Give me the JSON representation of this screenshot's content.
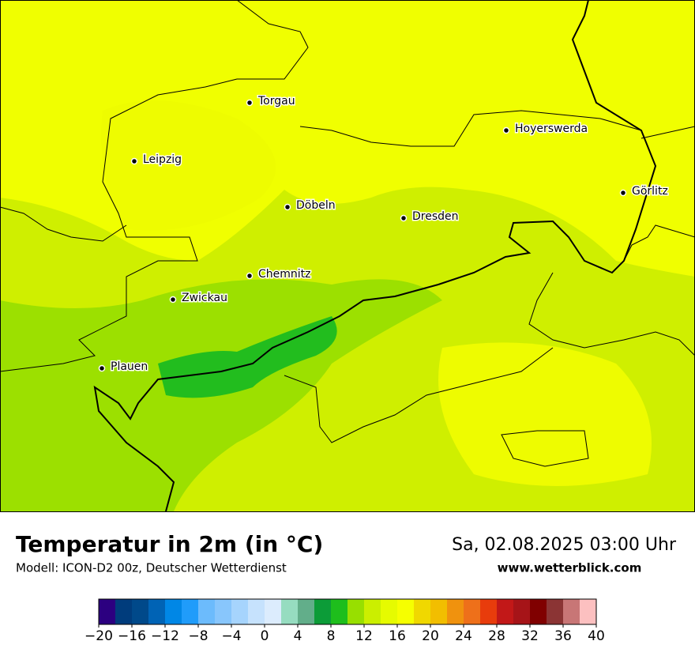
{
  "header": {
    "title": "Temperatur in 2m (in °C)",
    "model": "Modell: ICON-D2 00z, Deutscher Wetterdienst",
    "datetime": "Sa, 02.08.2025 03:00 Uhr",
    "website": "www.wetterblick.com"
  },
  "cities": [
    "Torgau",
    "Leipzig",
    "Hoyerswerda",
    "Görlitz",
    "Döbeln",
    "Dresden",
    "Chemnitz",
    "Zwickau",
    "Plauen"
  ],
  "colorbar": {
    "lim": [
      -20,
      40
    ],
    "colors": [
      "#2c0080",
      "#003c7c",
      "#00498a",
      "#0063b5",
      "#0087e6",
      "#209cfa",
      "#6cbbfc",
      "#88c6fc",
      "#a6d4fd",
      "#c6e2fd",
      "#dcecfd",
      "#96dcc0",
      "#62ae8a",
      "#0c9c38",
      "#1ebe1c",
      "#98df00",
      "#cbef00",
      "#e6fb00",
      "#f6ff00",
      "#f0d800",
      "#f2be00",
      "#f0920e",
      "#ee701a",
      "#e83c0c",
      "#c21818",
      "#a61418",
      "#800000",
      "#8b3434",
      "#c87676",
      "#fcc0c0"
    ],
    "ticks": [
      {
        "value": -20,
        "label": "−20"
      },
      {
        "value": -16,
        "label": "−16"
      },
      {
        "value": -12,
        "label": "−12"
      },
      {
        "value": -8,
        "label": "−8"
      },
      {
        "value": -4,
        "label": "−4"
      },
      0,
      4,
      8,
      12,
      16,
      20,
      24,
      28,
      32,
      36,
      40
    ]
  }
}
